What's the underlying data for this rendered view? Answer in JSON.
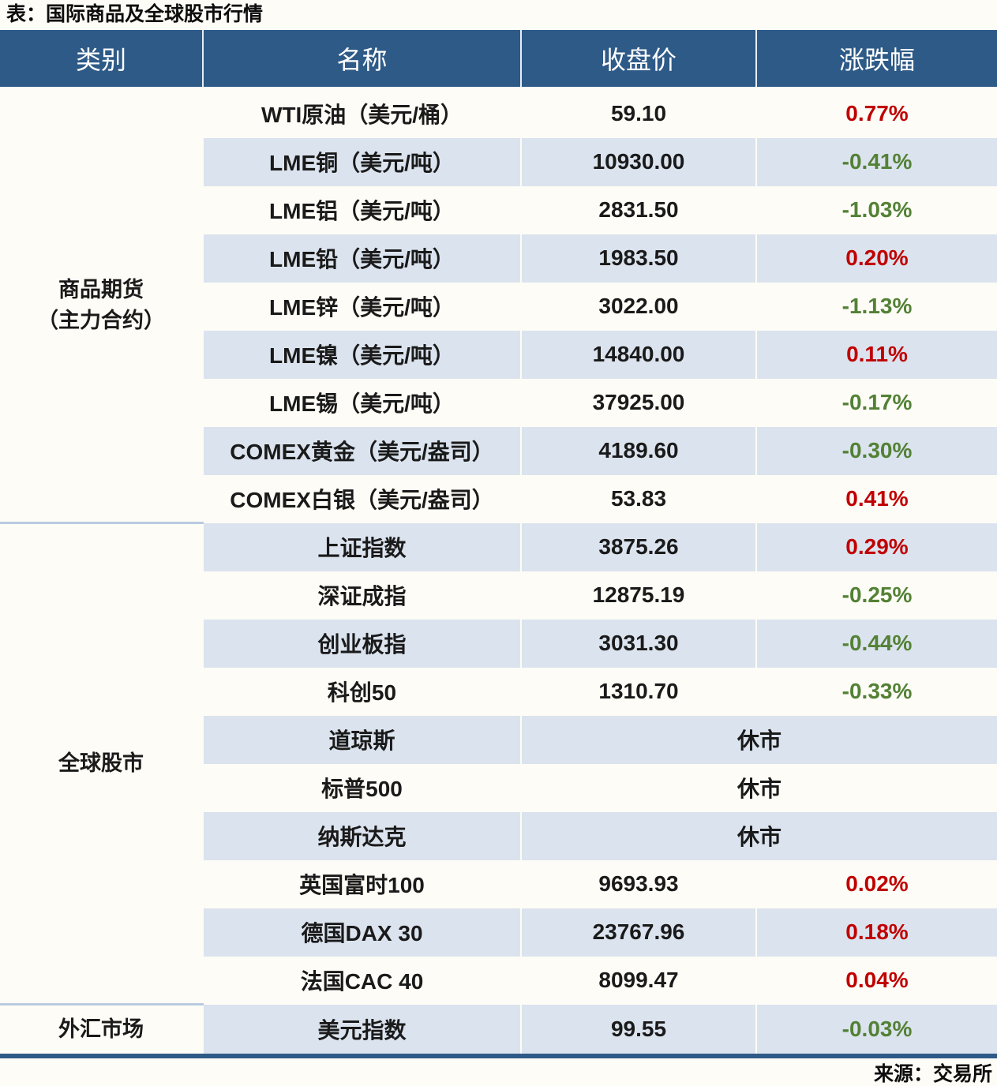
{
  "title": "表：国际商品及全球股市行情",
  "source": "来源：交易所",
  "columns": [
    "类别",
    "名称",
    "收盘价",
    "涨跌幅"
  ],
  "closed_label": "休市",
  "colors": {
    "header_bg": "#2e5a87",
    "header_text": "#ffffff",
    "row_alt_bg": "#dbe3ee",
    "up": "#c00000",
    "down": "#538135",
    "section_divider": "#b9cbe0",
    "bottom_rule": "#2e5a87"
  },
  "sections": [
    {
      "category": [
        "商品期货",
        "（主力合约）"
      ],
      "rows": [
        {
          "name": "WTI原油（美元/桶）",
          "close": "59.10",
          "change": "0.77%",
          "direction": "up"
        },
        {
          "name": "LME铜（美元/吨）",
          "close": "10930.00",
          "change": "-0.41%",
          "direction": "down"
        },
        {
          "name": "LME铝（美元/吨）",
          "close": "2831.50",
          "change": "-1.03%",
          "direction": "down"
        },
        {
          "name": "LME铅（美元/吨）",
          "close": "1983.50",
          "change": "0.20%",
          "direction": "up"
        },
        {
          "name": "LME锌（美元/吨）",
          "close": "3022.00",
          "change": "-1.13%",
          "direction": "down"
        },
        {
          "name": "LME镍（美元/吨）",
          "close": "14840.00",
          "change": "0.11%",
          "direction": "up"
        },
        {
          "name": "LME锡（美元/吨）",
          "close": "37925.00",
          "change": "-0.17%",
          "direction": "down"
        },
        {
          "name": "COMEX黄金（美元/盎司）",
          "close": "4189.60",
          "change": "-0.30%",
          "direction": "down"
        },
        {
          "name": "COMEX白银（美元/盎司）",
          "close": "53.83",
          "change": "0.41%",
          "direction": "up"
        }
      ]
    },
    {
      "category": [
        "全球股市"
      ],
      "rows": [
        {
          "name": "上证指数",
          "close": "3875.26",
          "change": "0.29%",
          "direction": "up"
        },
        {
          "name": "深证成指",
          "close": "12875.19",
          "change": "-0.25%",
          "direction": "down"
        },
        {
          "name": "创业板指",
          "close": "3031.30",
          "change": "-0.44%",
          "direction": "down"
        },
        {
          "name": "科创50",
          "close": "1310.70",
          "change": "-0.33%",
          "direction": "down"
        },
        {
          "name": "道琼斯",
          "closed": true
        },
        {
          "name": "标普500",
          "closed": true
        },
        {
          "name": "纳斯达克",
          "closed": true
        },
        {
          "name": "英国富时100",
          "close": "9693.93",
          "change": "0.02%",
          "direction": "up"
        },
        {
          "name": "德国DAX 30",
          "close": "23767.96",
          "change": "0.18%",
          "direction": "up"
        },
        {
          "name": "法国CAC 40",
          "close": "8099.47",
          "change": "0.04%",
          "direction": "up"
        }
      ]
    },
    {
      "category": [
        "外汇市场"
      ],
      "rows": [
        {
          "name": "美元指数",
          "close": "99.55",
          "change": "-0.03%",
          "direction": "down"
        }
      ]
    }
  ]
}
